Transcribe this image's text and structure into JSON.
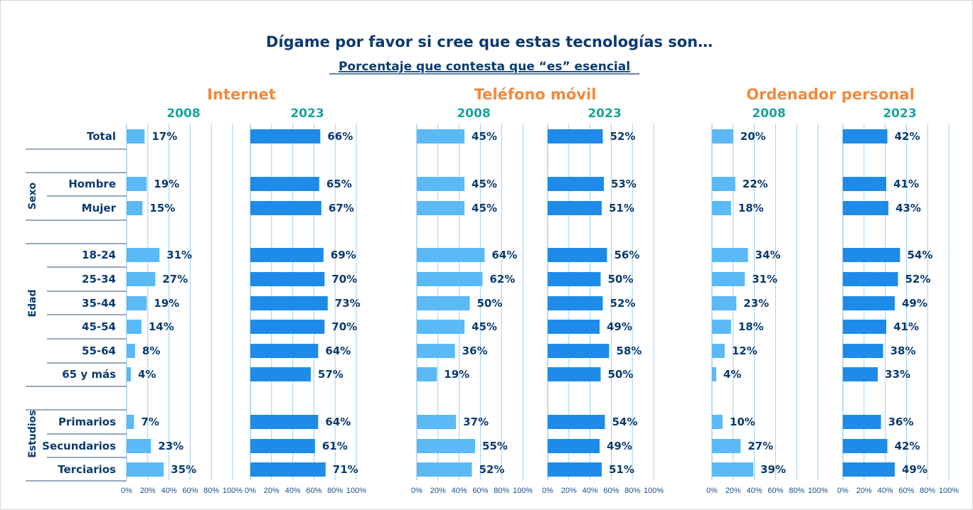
{
  "chart_data": {
    "type": "bar",
    "orientation": "horizontal",
    "title": "Dígame por favor si cree que estas tecnologías son…",
    "subtitle": "Porcentaje que contesta que “es” esencial",
    "colors": {
      "2008": "#5bb9f6",
      "2023": "#1e8be8",
      "grid": "#9cd0f3",
      "text": "#0b3a6e",
      "group_title": "#f08a3c",
      "year": "#1aa39a"
    },
    "xlim": [
      0,
      100
    ],
    "x_ticks": [
      "0%",
      "20%",
      "40%",
      "60%",
      "80%",
      "100%"
    ],
    "sections": [
      {
        "label": "",
        "rows": [
          "Total"
        ]
      },
      {
        "label": "Sexo",
        "rows": [
          "Hombre",
          "Mujer"
        ]
      },
      {
        "label": "Edad",
        "rows": [
          "18-24",
          "25-34",
          "35-44",
          "45-54",
          "55-64",
          "65 y más"
        ]
      },
      {
        "label": "Estudios",
        "rows": [
          "Primarios",
          "Secundarios",
          "Terciarios"
        ]
      }
    ],
    "categories": [
      "Total",
      "Hombre",
      "Mujer",
      "18-24",
      "25-34",
      "35-44",
      "45-54",
      "55-64",
      "65 y más",
      "Primarios",
      "Secundarios",
      "Terciarios"
    ],
    "groups": [
      {
        "name": "Internet",
        "series": [
          {
            "name": "2008",
            "values": [
              17,
              19,
              15,
              31,
              27,
              19,
              14,
              8,
              4,
              7,
              23,
              35
            ],
            "labels": [
              "17%",
              "19%",
              "15%",
              "31%",
              "27%",
              "19%",
              "14%",
              "8%",
              "4%",
              "7%",
              "23%",
              "35%"
            ]
          },
          {
            "name": "2023",
            "values": [
              66,
              65,
              67,
              69,
              70,
              73,
              70,
              64,
              57,
              64,
              61,
              71
            ],
            "labels": [
              "66%",
              "65%",
              "67%",
              "69%",
              "70%",
              "73%",
              "70%",
              "64%",
              "57%",
              "64%",
              "61%",
              "71%"
            ]
          }
        ]
      },
      {
        "name": "Teléfono móvil",
        "series": [
          {
            "name": "2008",
            "values": [
              45,
              45,
              45,
              64,
              62,
              50,
              45,
              36,
              19,
              37,
              55,
              52
            ],
            "labels": [
              "45%",
              "45%",
              "45%",
              "64%",
              "62%",
              "50%",
              "45%",
              "36%",
              "19%",
              "37%",
              "55%",
              "52%"
            ]
          },
          {
            "name": "2023",
            "values": [
              52,
              53,
              51,
              56,
              50,
              52,
              49,
              58,
              50,
              54,
              49,
              51
            ],
            "labels": [
              "52%",
              "53%",
              "51%",
              "56%",
              "50%",
              "52%",
              "49%",
              "58%",
              "50%",
              "54%",
              "49%",
              "51%"
            ]
          }
        ]
      },
      {
        "name": "Ordenador personal",
        "series": [
          {
            "name": "2008",
            "values": [
              20,
              22,
              18,
              34,
              31,
              23,
              18,
              12,
              4,
              10,
              27,
              39
            ],
            "labels": [
              "20%",
              "22%",
              "18%",
              "34%",
              "31%",
              "23%",
              "18%",
              "12%",
              "4%",
              "10%",
              "27%",
              "39%"
            ]
          },
          {
            "name": "2023",
            "values": [
              42,
              41,
              43,
              54,
              52,
              49,
              41,
              38,
              33,
              36,
              42,
              49
            ],
            "labels": [
              "42%",
              "41%",
              "43%",
              "54%",
              "52%",
              "49%",
              "41%",
              "38%",
              "33%",
              "36%",
              "42%",
              "49%"
            ]
          }
        ]
      }
    ]
  }
}
